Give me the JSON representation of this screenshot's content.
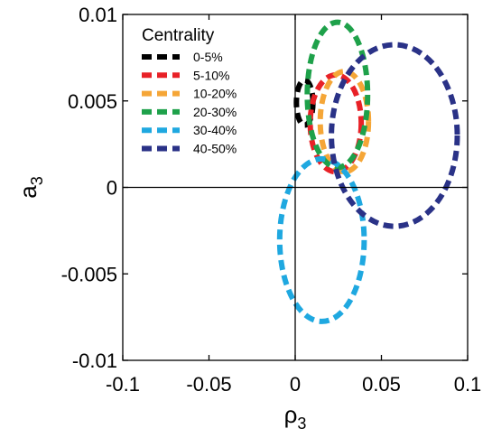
{
  "chart_data": {
    "type": "line",
    "title": "",
    "xlabel": "ρ",
    "xlabel_sub": "3",
    "ylabel": "a",
    "ylabel_sub": "3",
    "xlim": [
      -0.1,
      0.1
    ],
    "ylim": [
      -0.01,
      0.01
    ],
    "x_ticks": [
      -0.1,
      -0.05,
      0,
      0.05,
      0.1
    ],
    "x_tick_labels": [
      "-0.1",
      "-0.05",
      "0",
      "0.05",
      "0.1"
    ],
    "y_ticks": [
      -0.01,
      -0.005,
      0,
      0.005,
      0.01
    ],
    "y_tick_labels": [
      "-0.01",
      "-0.005",
      "0",
      "0.005",
      "0.01"
    ],
    "grid": false,
    "zero_lines": true,
    "legend": {
      "title": "Centrality",
      "position": "top-left"
    },
    "series": [
      {
        "name": "0-5%",
        "color": "#000000",
        "center": [
          0.0055,
          0.0049
        ],
        "radii": [
          0.0048,
          0.0013
        ]
      },
      {
        "name": "5-10%",
        "color": "#e82127",
        "center": [
          0.0235,
          0.0037
        ],
        "radii": [
          0.0148,
          0.0028
        ]
      },
      {
        "name": "10-20%",
        "color": "#f5a637",
        "center": [
          0.0285,
          0.0038
        ],
        "radii": [
          0.014,
          0.0029
        ]
      },
      {
        "name": "20-30%",
        "color": "#1ea14a",
        "center": [
          0.0245,
          0.00535
        ],
        "radii": [
          0.0175,
          0.0042
        ]
      },
      {
        "name": "30-40%",
        "color": "#1fa8e0",
        "center": [
          0.0155,
          -0.00305
        ],
        "radii": [
          0.0245,
          0.0047
        ]
      },
      {
        "name": "40-50%",
        "color": "#2a3287",
        "center": [
          0.0575,
          0.003
        ],
        "radii": [
          0.0365,
          0.00525
        ]
      }
    ]
  }
}
